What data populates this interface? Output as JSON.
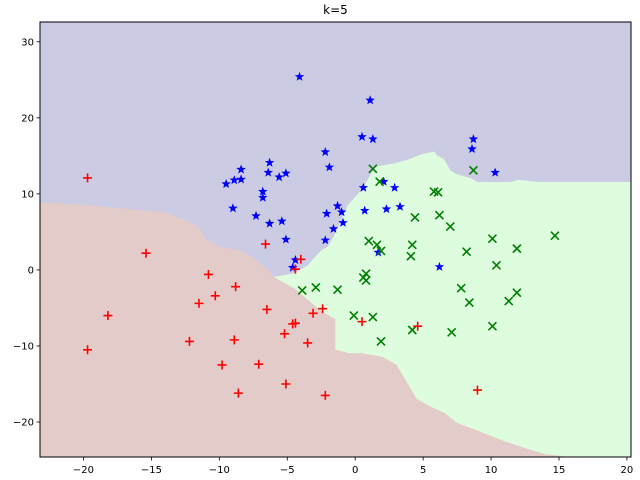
{
  "chart_data": {
    "type": "scatter",
    "title": "k=5",
    "xlabel": "",
    "ylabel": "",
    "xlim": [
      -23.2,
      20.3
    ],
    "ylim": [
      -24.6,
      32.6
    ],
    "xticks": [
      -20,
      -15,
      -10,
      -5,
      0,
      5,
      10,
      15,
      20
    ],
    "yticks": [
      -20,
      -10,
      0,
      10,
      20,
      30
    ],
    "grid": false,
    "legend": "none",
    "regions": [
      {
        "class": "blue",
        "color": "#cbcbe4",
        "boundary": [
          [
            -23.2,
            32.6
          ],
          [
            20.3,
            32.6
          ],
          [
            20.3,
            11.5
          ],
          [
            13.5,
            11.5
          ],
          [
            12,
            11.8
          ],
          [
            11.5,
            11.5
          ],
          [
            9,
            11.5
          ],
          [
            8.5,
            12
          ],
          [
            7.5,
            12.5
          ],
          [
            7,
            13
          ],
          [
            6.5,
            14.5
          ],
          [
            6,
            15
          ],
          [
            5.8,
            15.5
          ],
          [
            5,
            15.2
          ],
          [
            4,
            14.5
          ],
          [
            3,
            14
          ],
          [
            1.5,
            13.5
          ],
          [
            1,
            12
          ],
          [
            0.5,
            10.5
          ],
          [
            0,
            9.5
          ],
          [
            -0.5,
            8.5
          ],
          [
            -1,
            6.5
          ],
          [
            -1.5,
            4.5
          ],
          [
            -2,
            3
          ],
          [
            -2.5,
            2.5
          ],
          [
            -3,
            1.5
          ],
          [
            -3.5,
            0.5
          ],
          [
            -4.5,
            -0.5
          ],
          [
            -6,
            -1
          ],
          [
            -6.5,
            0
          ],
          [
            -7.5,
            1.5
          ],
          [
            -8.5,
            2.5
          ],
          [
            -10,
            3
          ],
          [
            -11,
            4
          ],
          [
            -11.5,
            5.5
          ],
          [
            -12.5,
            6.5
          ],
          [
            -14,
            7.5
          ],
          [
            -17,
            8
          ],
          [
            -20,
            8.5
          ],
          [
            -23.2,
            8.8
          ]
        ]
      },
      {
        "class": "green",
        "color": "#ddfdde",
        "boundary": [
          [
            20.3,
            11.5
          ],
          [
            20.3,
            -24.6
          ],
          [
            15.5,
            -24.6
          ],
          [
            14,
            -24.3
          ],
          [
            12.5,
            -23.5
          ],
          [
            11,
            -22.6
          ],
          [
            9,
            -21.2
          ],
          [
            7.5,
            -20.2
          ],
          [
            6.5,
            -18.8
          ],
          [
            5.5,
            -18
          ],
          [
            4.5,
            -17
          ],
          [
            3.5,
            -14
          ],
          [
            3,
            -12.5
          ],
          [
            2,
            -11.5
          ],
          [
            0.5,
            -11
          ],
          [
            -0.5,
            -11
          ],
          [
            -1.5,
            -10.5
          ],
          [
            -1.5,
            -6.5
          ],
          [
            -2.5,
            -5.5
          ],
          [
            -3.5,
            -4
          ],
          [
            -4.5,
            -2.5
          ],
          [
            -5.5,
            -1.5
          ],
          [
            -6,
            -1
          ],
          [
            -4.5,
            -0.5
          ],
          [
            -3.5,
            0.5
          ],
          [
            -3,
            1.5
          ],
          [
            -2.5,
            2.5
          ],
          [
            -2,
            3
          ],
          [
            -1.5,
            4.5
          ],
          [
            -1,
            6.5
          ],
          [
            -0.5,
            8.5
          ],
          [
            0,
            9.5
          ],
          [
            0.5,
            10.5
          ],
          [
            1,
            12
          ],
          [
            1.5,
            13.5
          ],
          [
            3,
            14
          ],
          [
            4,
            14.5
          ],
          [
            5,
            15.2
          ],
          [
            5.8,
            15.5
          ],
          [
            6,
            15
          ],
          [
            6.5,
            14.5
          ],
          [
            7,
            13
          ],
          [
            7.5,
            12.5
          ],
          [
            8.5,
            12
          ],
          [
            9,
            11.5
          ],
          [
            11.5,
            11.5
          ],
          [
            12,
            11.8
          ],
          [
            13.5,
            11.5
          ]
        ]
      },
      {
        "class": "red",
        "color": "#e3cbca",
        "boundary": [
          [
            -23.2,
            8.8
          ],
          [
            -20,
            8.5
          ],
          [
            -17,
            8
          ],
          [
            -14,
            7.5
          ],
          [
            -12.5,
            6.5
          ],
          [
            -11.5,
            5.5
          ],
          [
            -11,
            4
          ],
          [
            -10,
            3
          ],
          [
            -8.5,
            2.5
          ],
          [
            -7.5,
            1.5
          ],
          [
            -6.5,
            0
          ],
          [
            -6,
            -1
          ],
          [
            -5.5,
            -1.5
          ],
          [
            -4.5,
            -2.5
          ],
          [
            -3.5,
            -4
          ],
          [
            -2.5,
            -5.5
          ],
          [
            -1.5,
            -6.5
          ],
          [
            -1.5,
            -10.5
          ],
          [
            -0.5,
            -11
          ],
          [
            0.5,
            -11
          ],
          [
            2,
            -11.5
          ],
          [
            3,
            -12.5
          ],
          [
            3.5,
            -14
          ],
          [
            4.5,
            -17
          ],
          [
            5.5,
            -18
          ],
          [
            6.5,
            -18.8
          ],
          [
            7.5,
            -20.2
          ],
          [
            9,
            -21.2
          ],
          [
            11,
            -22.6
          ],
          [
            12.5,
            -23.5
          ],
          [
            14,
            -24.3
          ],
          [
            15.5,
            -24.6
          ],
          [
            -23.2,
            -24.6
          ]
        ]
      }
    ],
    "series": [
      {
        "class": "blue",
        "marker": "star",
        "color": "#0000ff",
        "points": [
          [
            -4.1,
            25.4
          ],
          [
            1.1,
            22.3
          ],
          [
            0.5,
            17.5
          ],
          [
            1.3,
            17.2
          ],
          [
            -2.2,
            15.5
          ],
          [
            -1.9,
            13.5
          ],
          [
            -6.3,
            14.1
          ],
          [
            -6.4,
            12.8
          ],
          [
            -5.6,
            12.2
          ],
          [
            -5.1,
            12.7
          ],
          [
            -8.4,
            13.2
          ],
          [
            -8.4,
            11.9
          ],
          [
            -8.9,
            11.8
          ],
          [
            -9.5,
            11.3
          ],
          [
            -6.8,
            10.3
          ],
          [
            -6.8,
            9.5
          ],
          [
            -9.0,
            8.1
          ],
          [
            -7.3,
            7.1
          ],
          [
            -6.3,
            6.1
          ],
          [
            -5.4,
            6.4
          ],
          [
            -5.1,
            4.0
          ],
          [
            -2.1,
            7.4
          ],
          [
            -1.3,
            8.4
          ],
          [
            -1.0,
            7.6
          ],
          [
            -0.9,
            6.2
          ],
          [
            -1.6,
            5.4
          ],
          [
            -2.2,
            3.9
          ],
          [
            -4.4,
            1.3
          ],
          [
            -4.6,
            0.3
          ],
          [
            0.6,
            10.8
          ],
          [
            2.1,
            11.6
          ],
          [
            2.9,
            10.8
          ],
          [
            2.3,
            8.0
          ],
          [
            3.3,
            8.3
          ],
          [
            0.7,
            7.8
          ],
          [
            1.7,
            2.3
          ],
          [
            6.2,
            0.4
          ],
          [
            8.7,
            17.2
          ],
          [
            8.6,
            15.9
          ],
          [
            10.3,
            12.8
          ]
        ]
      },
      {
        "class": "green",
        "marker": "x",
        "color": "#008000",
        "points": [
          [
            1.3,
            13.3
          ],
          [
            1.8,
            11.6
          ],
          [
            5.8,
            10.3
          ],
          [
            6.1,
            10.2
          ],
          [
            8.7,
            13.1
          ],
          [
            4.4,
            6.9
          ],
          [
            6.2,
            7.2
          ],
          [
            7.0,
            5.7
          ],
          [
            4.2,
            3.3
          ],
          [
            4.1,
            1.8
          ],
          [
            8.2,
            2.4
          ],
          [
            10.1,
            4.1
          ],
          [
            10.4,
            0.6
          ],
          [
            11.9,
            2.8
          ],
          [
            14.7,
            4.5
          ],
          [
            1.0,
            3.8
          ],
          [
            1.6,
            3.3
          ],
          [
            1.9,
            2.5
          ],
          [
            0.8,
            -0.5
          ],
          [
            0.8,
            -1.4
          ],
          [
            0.6,
            -1.0
          ],
          [
            -3.9,
            -2.7
          ],
          [
            -2.9,
            -2.3
          ],
          [
            -1.3,
            -2.6
          ],
          [
            7.8,
            -2.4
          ],
          [
            8.4,
            -4.3
          ],
          [
            11.9,
            -3.0
          ],
          [
            11.3,
            -4.1
          ],
          [
            1.3,
            -6.2
          ],
          [
            -0.1,
            -6.0
          ],
          [
            1.9,
            -9.4
          ],
          [
            4.2,
            -7.9
          ],
          [
            7.1,
            -8.2
          ],
          [
            10.1,
            -7.4
          ]
        ]
      },
      {
        "class": "red",
        "marker": "plus",
        "color": "#ff0000",
        "points": [
          [
            -19.7,
            12.1
          ],
          [
            -15.4,
            2.2
          ],
          [
            -6.6,
            3.4
          ],
          [
            -10.8,
            -0.6
          ],
          [
            -8.8,
            -2.2
          ],
          [
            -11.5,
            -4.4
          ],
          [
            -10.3,
            -3.4
          ],
          [
            -18.2,
            -6.0
          ],
          [
            -19.7,
            -10.5
          ],
          [
            -6.5,
            -5.2
          ],
          [
            -4.6,
            -7.1
          ],
          [
            -4.4,
            -7.0
          ],
          [
            -5.2,
            -8.4
          ],
          [
            -3.1,
            -5.7
          ],
          [
            -2.4,
            -5.1
          ],
          [
            -3.5,
            -9.6
          ],
          [
            -12.2,
            -9.4
          ],
          [
            -8.9,
            -9.2
          ],
          [
            -9.8,
            -12.5
          ],
          [
            -7.1,
            -12.4
          ],
          [
            -8.6,
            -16.2
          ],
          [
            -5.1,
            -15.0
          ],
          [
            -2.2,
            -16.5
          ],
          [
            0.5,
            -6.8
          ],
          [
            4.6,
            -7.4
          ],
          [
            9.0,
            -15.8
          ],
          [
            -4.0,
            1.4
          ],
          [
            -4.4,
            0.1
          ]
        ]
      }
    ]
  }
}
